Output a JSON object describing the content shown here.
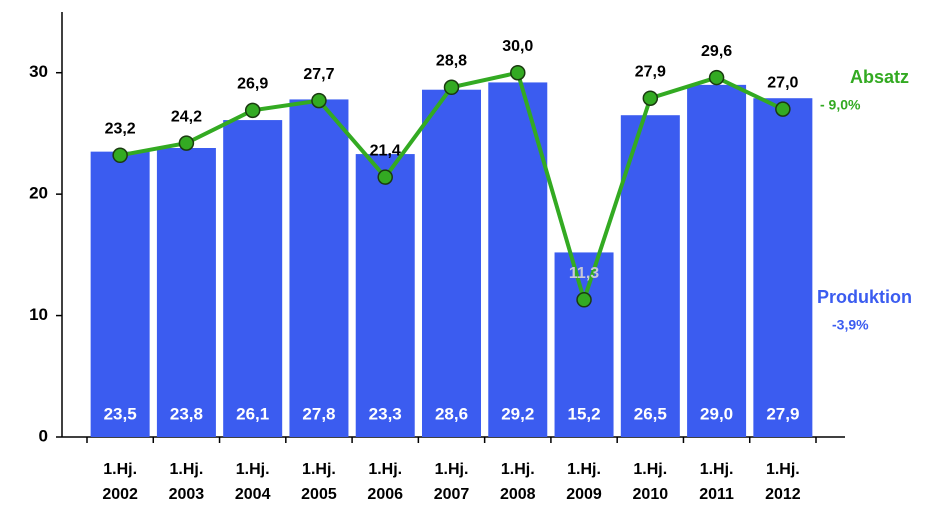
{
  "chart_data": {
    "type": "bar-line",
    "categories": [
      "1.Hj.\n2002",
      "1.Hj.\n2003",
      "1.Hj.\n2004",
      "1.Hj.\n2005",
      "1.Hj.\n2006",
      "1.Hj.\n2007",
      "1.Hj.\n2008",
      "1.Hj.\n2009",
      "1.Hj.\n2010",
      "1.Hj.\n2011",
      "1.Hj.\n2012"
    ],
    "series": [
      {
        "name": "Produktion",
        "type": "bar",
        "color": "#3b5cf0",
        "values": [
          23.5,
          23.8,
          26.1,
          27.8,
          23.3,
          28.6,
          29.2,
          15.2,
          26.5,
          29.0,
          27.9
        ],
        "value_labels": [
          "23,5",
          "23,8",
          "26,1",
          "27,8",
          "23,3",
          "28,6",
          "29,2",
          "15,2",
          "26,5",
          "29,0",
          "27,9"
        ]
      },
      {
        "name": "Absatz",
        "type": "line",
        "color": "#33aa22",
        "values": [
          23.2,
          24.2,
          26.9,
          27.7,
          21.4,
          28.8,
          30.0,
          11.3,
          27.9,
          29.6,
          27.0
        ],
        "value_labels": [
          "23,2",
          "24,2",
          "26,9",
          "27,7",
          "21,4",
          "28,8",
          "30,0",
          "11,3",
          "27,9",
          "29,6",
          "27,0"
        ]
      }
    ],
    "annotations": [
      "- 9,0%",
      "-3,9%"
    ],
    "ylim": [
      0,
      35
    ],
    "yticks": [
      0,
      10,
      20,
      30
    ]
  }
}
